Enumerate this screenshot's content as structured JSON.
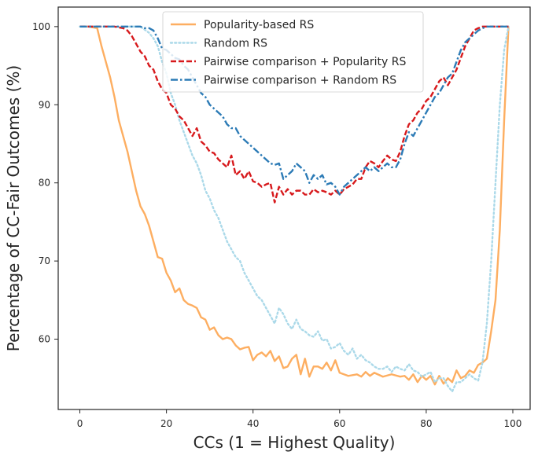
{
  "chart_data": {
    "type": "line",
    "xlabel": "CCs (1 = Highest Quality)",
    "ylabel": "Percentage of CC-Fair Outcomes  (%)",
    "xlim": [
      -5,
      104
    ],
    "ylim": [
      51,
      102.5
    ],
    "xticks": [
      "0",
      "20",
      "40",
      "60",
      "80",
      "100"
    ],
    "yticks": [
      "60",
      "70",
      "80",
      "90",
      "100"
    ],
    "legend_position": "top-center",
    "series": [
      {
        "name": "Popularity-based RS",
        "color": "#fdae61",
        "style": "solid",
        "x": [
          0,
          2,
          4,
          5,
          6,
          7,
          8,
          9,
          10,
          11,
          12,
          13,
          14,
          15,
          16,
          17,
          18,
          19,
          20,
          21,
          22,
          23,
          24,
          25,
          26,
          27,
          28,
          29,
          30,
          31,
          32,
          33,
          34,
          35,
          36,
          37,
          38,
          39,
          40,
          41,
          42,
          43,
          44,
          45,
          46,
          47,
          48,
          49,
          50,
          51,
          52,
          53,
          54,
          55,
          56,
          57,
          58,
          59,
          60,
          62,
          64,
          65,
          66,
          67,
          68,
          70,
          72,
          74,
          75,
          76,
          77,
          78,
          79,
          80,
          81,
          82,
          83,
          84,
          85,
          86,
          87,
          88,
          89,
          90,
          91,
          92,
          93,
          94,
          95,
          96,
          97,
          98,
          99
        ],
        "y": [
          100,
          100,
          99.8,
          97.5,
          95.5,
          93.5,
          91,
          88,
          86,
          84,
          81.5,
          79,
          77,
          76,
          74.5,
          72.5,
          70.5,
          70.3,
          68.5,
          67.5,
          66,
          66.5,
          65,
          64.5,
          64.3,
          64,
          62.8,
          62.5,
          61.2,
          61.5,
          60.5,
          60,
          60.2,
          60,
          59.2,
          58.7,
          58.9,
          59,
          57.3,
          58,
          58.3,
          57.8,
          58.5,
          57.2,
          57.8,
          56.3,
          56.5,
          57.5,
          58,
          55.5,
          57.5,
          55.2,
          56.5,
          56.5,
          56.2,
          57,
          56,
          57.3,
          55.7,
          55.3,
          55.5,
          55.2,
          55.8,
          55.3,
          55.7,
          55.2,
          55.5,
          55.2,
          55.3,
          54.8,
          55.5,
          54.5,
          55.3,
          54.8,
          55.3,
          54.2,
          55.3,
          54.3,
          55,
          54.5,
          56,
          55,
          55.3,
          56,
          55.7,
          56.7,
          57,
          57.5,
          61,
          65,
          74,
          88,
          100
        ]
      },
      {
        "name": "Random RS",
        "color": "#abd9e9",
        "style": "dotted",
        "x": [
          0,
          2,
          4,
          6,
          8,
          10,
          12,
          14,
          16,
          17,
          18,
          19,
          20,
          21,
          22,
          23,
          24,
          25,
          26,
          27,
          28,
          29,
          30,
          31,
          32,
          33,
          34,
          35,
          36,
          37,
          38,
          39,
          40,
          41,
          42,
          43,
          44,
          45,
          46,
          47,
          48,
          49,
          50,
          51,
          52,
          53,
          54,
          55,
          56,
          57,
          58,
          59,
          60,
          61,
          62,
          63,
          64,
          65,
          66,
          67,
          68,
          69,
          70,
          71,
          72,
          73,
          74,
          75,
          76,
          77,
          78,
          79,
          80,
          81,
          82,
          83,
          84,
          85,
          86,
          87,
          88,
          89,
          90,
          91,
          92,
          93,
          94,
          95,
          96,
          97,
          98,
          99
        ],
        "y": [
          100,
          100,
          100,
          100,
          100,
          100,
          100,
          100,
          99.2,
          98.5,
          97.5,
          95.5,
          94,
          91.5,
          90,
          88,
          86.5,
          85,
          83.5,
          82.5,
          81,
          79,
          78,
          76.5,
          75.5,
          74,
          72.5,
          71.5,
          70.5,
          70,
          68.5,
          67.5,
          66.5,
          65.5,
          65,
          64,
          63,
          62,
          64,
          63.2,
          62,
          61.3,
          62.5,
          61.3,
          61,
          60.5,
          60.3,
          61,
          59.8,
          60,
          58.8,
          59,
          59.5,
          58.5,
          58,
          58.8,
          57.5,
          58,
          57.3,
          57,
          56.5,
          56.2,
          56.2,
          56.5,
          55.8,
          56.5,
          56.2,
          56,
          56.8,
          56,
          55.8,
          55.2,
          55.5,
          55.8,
          54.5,
          55,
          55,
          54,
          53.3,
          54.5,
          54.5,
          55,
          55.5,
          55,
          54.7,
          57,
          62,
          70,
          80,
          90,
          97,
          100
        ]
      },
      {
        "name": "Pairwise comparison + Popularity RS",
        "color": "#d7191c",
        "style": "dashed",
        "x": [
          0,
          2,
          4,
          6,
          8,
          10,
          11,
          12,
          13,
          14,
          15,
          16,
          17,
          18,
          19,
          20,
          21,
          22,
          23,
          24,
          25,
          26,
          27,
          28,
          29,
          30,
          31,
          32,
          33,
          34,
          35,
          36,
          37,
          38,
          39,
          40,
          41,
          42,
          43,
          44,
          45,
          46,
          47,
          48,
          49,
          50,
          51,
          52,
          53,
          54,
          55,
          56,
          57,
          58,
          59,
          60,
          61,
          62,
          63,
          64,
          65,
          66,
          67,
          68,
          69,
          70,
          71,
          72,
          73,
          74,
          75,
          76,
          77,
          78,
          79,
          80,
          81,
          82,
          83,
          84,
          85,
          86,
          87,
          88,
          89,
          90,
          91,
          92,
          93,
          94,
          95,
          96,
          97,
          98,
          99
        ],
        "y": [
          100,
          100,
          100,
          100,
          100,
          99.8,
          99.5,
          98.8,
          97.8,
          96.8,
          96.2,
          95,
          94.5,
          93,
          92,
          91.5,
          90,
          89.5,
          88.5,
          88,
          87,
          86,
          87,
          85.3,
          84.8,
          84,
          83.8,
          83,
          82.5,
          82,
          83.5,
          81,
          81.5,
          80.5,
          81.5,
          80.2,
          80,
          79.5,
          79.8,
          80,
          77.5,
          79.5,
          78.5,
          79.2,
          78.5,
          79,
          79,
          78.5,
          78.5,
          79.2,
          78.8,
          79,
          78.8,
          78.5,
          79,
          78.5,
          79.2,
          79.5,
          79.8,
          80.5,
          80.5,
          82,
          82.8,
          82.5,
          82,
          82.8,
          83.5,
          83,
          82.8,
          84,
          86,
          87.5,
          88,
          89,
          89.5,
          90.5,
          91,
          92,
          93,
          93.5,
          92.5,
          93.5,
          94.5,
          96,
          97.5,
          98.5,
          99.5,
          99.8,
          100,
          100,
          100,
          100,
          100,
          100,
          100
        ]
      },
      {
        "name": "Pairwise comparison + Random RS",
        "color": "#2c7bb6",
        "style": "dashdot",
        "x": [
          0,
          2,
          4,
          6,
          8,
          10,
          12,
          14,
          15,
          16,
          17,
          18,
          19,
          20,
          21,
          22,
          23,
          24,
          25,
          26,
          27,
          28,
          29,
          30,
          31,
          32,
          33,
          34,
          35,
          36,
          37,
          38,
          39,
          40,
          41,
          42,
          43,
          44,
          45,
          46,
          47,
          48,
          49,
          50,
          51,
          52,
          53,
          54,
          55,
          56,
          57,
          58,
          59,
          60,
          61,
          62,
          63,
          64,
          65,
          66,
          67,
          68,
          69,
          70,
          71,
          72,
          73,
          74,
          75,
          76,
          77,
          78,
          79,
          80,
          81,
          82,
          83,
          84,
          85,
          86,
          87,
          88,
          89,
          90,
          91,
          92,
          93,
          94,
          95,
          96,
          97,
          98,
          99
        ],
        "y": [
          100,
          100,
          100,
          100,
          100,
          100,
          100,
          100,
          99.8,
          99.8,
          99.5,
          98.5,
          97.2,
          97,
          96.5,
          96,
          95.8,
          95,
          94.5,
          93.5,
          92.5,
          91.5,
          91,
          90,
          89.5,
          89,
          88.5,
          87.5,
          87,
          87,
          86,
          85.5,
          85,
          84.5,
          84,
          83.5,
          83,
          82.5,
          82.3,
          82.5,
          80.5,
          81,
          81.5,
          82.5,
          82,
          81.5,
          80,
          81,
          80.5,
          81,
          79.8,
          80,
          79.5,
          78.5,
          79.5,
          80,
          80.5,
          81,
          81.5,
          82,
          81.5,
          82,
          81.5,
          82,
          82.5,
          82,
          82,
          83,
          85,
          86.5,
          86,
          87,
          88,
          89,
          90,
          91,
          91.5,
          92.5,
          93.5,
          94,
          95.5,
          97,
          98,
          98.5,
          99,
          99.5,
          99.8,
          100,
          100,
          100,
          100,
          100,
          100
        ]
      }
    ]
  }
}
